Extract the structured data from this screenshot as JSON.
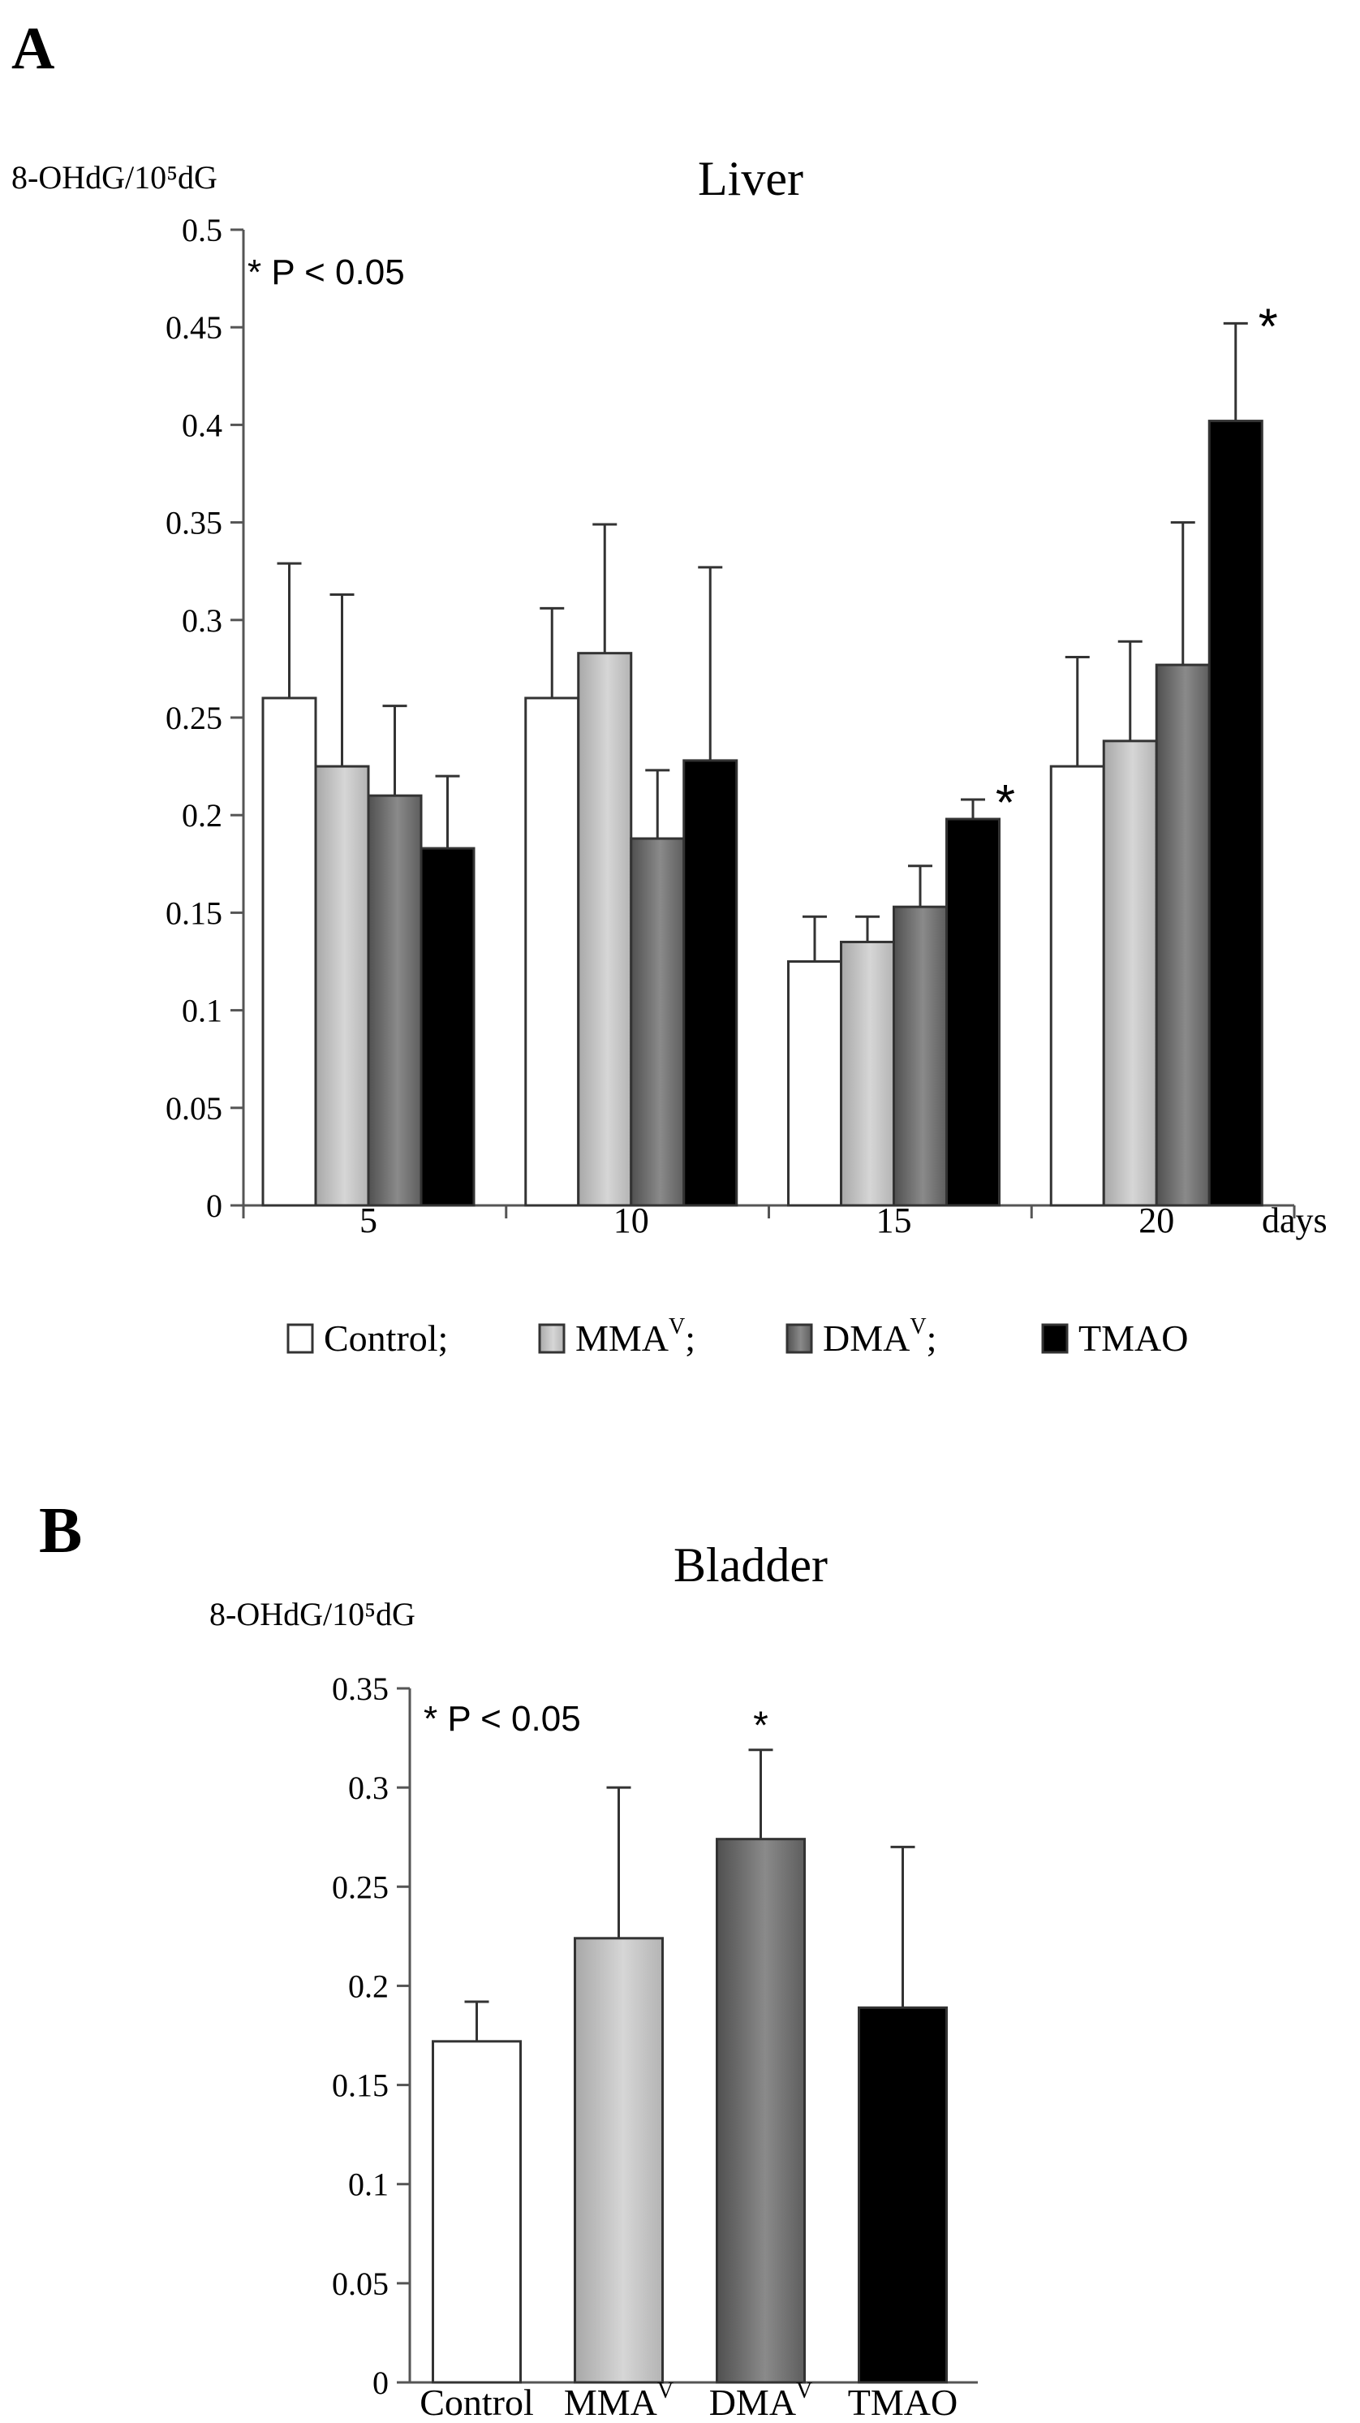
{
  "colors": {
    "control": "#ffffff",
    "mma": "#c4c4c4",
    "dma": "#6e6e6e",
    "tmao": "#000000",
    "axis": "#555555",
    "outline": "#333333"
  },
  "chart_data": [
    {
      "panel_label": "A",
      "type": "bar",
      "title": "Liver",
      "ylabel": "8-OHdG/10⁵dG",
      "xlabel": "days",
      "ylim": [
        0,
        0.5
      ],
      "yticks": [
        "0",
        "0.05",
        "0.1",
        "0.15",
        "0.2",
        "0.25",
        "0.3",
        "0.35",
        "0.4",
        "0.45",
        "0.5"
      ],
      "categories": [
        "5",
        "10",
        "15",
        "20"
      ],
      "annotation": "* P < 0.05",
      "significance_marker": "*",
      "series": [
        {
          "name": "Control",
          "key": "control",
          "values": [
            0.26,
            0.26,
            0.125,
            0.225
          ],
          "errors": [
            0.069,
            0.046,
            0.023,
            0.056
          ],
          "significant": [
            false,
            false,
            false,
            false
          ]
        },
        {
          "name": "MMAV",
          "key": "mma",
          "values": [
            0.225,
            0.283,
            0.135,
            0.238
          ],
          "errors": [
            0.088,
            0.066,
            0.013,
            0.051
          ],
          "significant": [
            false,
            false,
            false,
            false
          ]
        },
        {
          "name": "DMAV",
          "key": "dma",
          "values": [
            0.21,
            0.188,
            0.153,
            0.277
          ],
          "errors": [
            0.046,
            0.035,
            0.021,
            0.073
          ],
          "significant": [
            false,
            false,
            false,
            false
          ]
        },
        {
          "name": "TMAO",
          "key": "tmao",
          "values": [
            0.183,
            0.228,
            0.198,
            0.402
          ],
          "errors": [
            0.037,
            0.099,
            0.01,
            0.05
          ],
          "significant": [
            false,
            false,
            true,
            true
          ]
        }
      ],
      "legend": [
        {
          "key": "control",
          "text": "Control;",
          "base": "Control;",
          "sup": ""
        },
        {
          "key": "mma",
          "text": "MMAV;",
          "base": "MMA",
          "sup": "V",
          "after": ";"
        },
        {
          "key": "dma",
          "text": "DMAV;",
          "base": "DMA",
          "sup": "V",
          "after": ";"
        },
        {
          "key": "tmao",
          "text": "TMAO",
          "base": "TMAO",
          "sup": ""
        }
      ]
    },
    {
      "panel_label": "B",
      "type": "bar",
      "title": "Bladder",
      "ylabel": "8-OHdG/10⁵dG",
      "ylim": [
        0,
        0.35
      ],
      "yticks": [
        "0",
        "0.05",
        "0.1",
        "0.15",
        "0.2",
        "0.25",
        "0.3",
        "0.35"
      ],
      "annotation": "* P < 0.05",
      "significance_marker": "*",
      "categories": [
        {
          "key": "control",
          "text": "Control",
          "base": "Control",
          "sup": ""
        },
        {
          "key": "mma",
          "text": "MMAV",
          "base": "MMA",
          "sup": "V"
        },
        {
          "key": "dma",
          "text": "DMAV",
          "base": "DMA",
          "sup": "V"
        },
        {
          "key": "tmao",
          "text": "TMAO",
          "base": "TMAO",
          "sup": ""
        }
      ],
      "values": [
        0.172,
        0.224,
        0.274,
        0.189
      ],
      "errors": [
        0.02,
        0.076,
        0.045,
        0.081
      ],
      "significant": [
        false,
        false,
        true,
        false
      ]
    }
  ]
}
